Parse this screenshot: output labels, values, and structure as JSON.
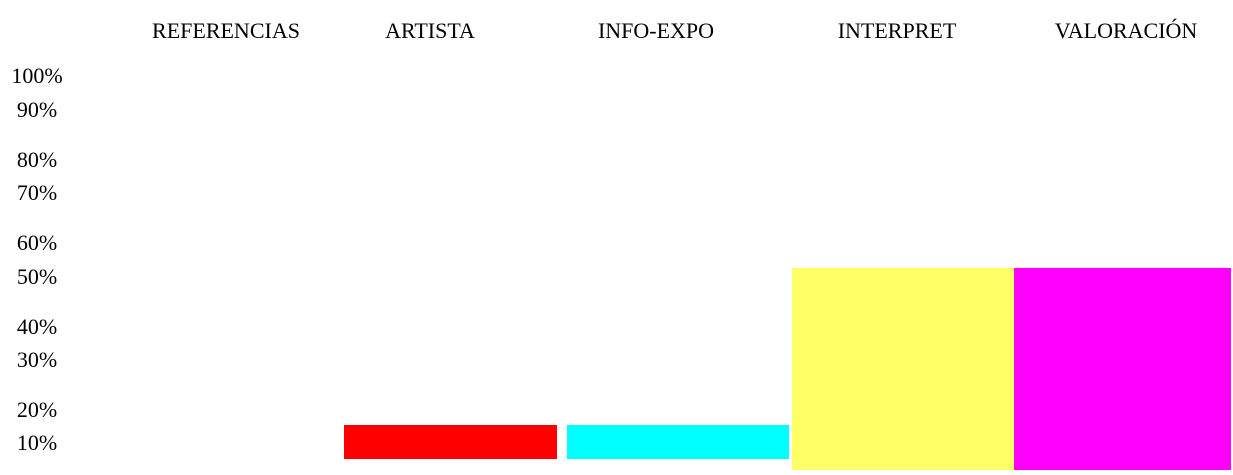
{
  "chart_data": {
    "type": "bar",
    "categories": [
      "REFERENCIAS",
      "ARTISTA",
      "INFO-EXPO",
      "INTERPRET",
      "VALORACIÓN"
    ],
    "values": [
      0,
      10,
      10,
      47,
      47
    ],
    "colors": [
      "#ffffff",
      "#ff0000",
      "#00ffff",
      "#ffff66",
      "#ff00ff"
    ],
    "y_ticks": [
      "100%",
      "90%",
      "80%",
      "70%",
      "60%",
      "50%",
      "40%",
      "30%",
      "20%",
      "10%"
    ],
    "ylim": [
      0,
      100
    ],
    "grid": false,
    "legend": "none",
    "title": "",
    "xlabel": "",
    "ylabel": ""
  }
}
